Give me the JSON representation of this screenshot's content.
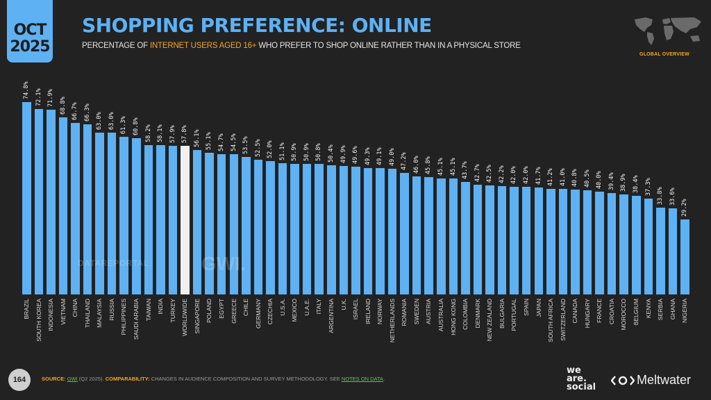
{
  "header": {
    "date_month": "OCT",
    "date_year": "2025",
    "title": "SHOPPING PREFERENCE: ONLINE",
    "subtitle_pre": "PERCENTAGE OF ",
    "subtitle_highlight": "INTERNET USERS AGED 16+",
    "subtitle_post": " WHO PREFER TO SHOP ONLINE RATHER THAN IN A PHYSICAL STORE",
    "section_label": "GLOBAL OVERVIEW"
  },
  "watermarks": {
    "left": "DATAREPORTAL",
    "right": "GWI."
  },
  "footer": {
    "page_number": "164",
    "source_label": "SOURCE:",
    "source_value": "GWI",
    "source_period": " (Q2 2025). ",
    "comparability_label": "COMPARABILITY:",
    "comparability_text": " CHANGES IN AUDIENCE COMPOSITION AND SURVEY METHODOLOGY. SEE ",
    "notes_link": "NOTES ON DATA",
    "notes_end": "."
  },
  "logos": {
    "we_are_social": [
      "we",
      "are.",
      "social"
    ],
    "meltwater": "Meltwater"
  },
  "colors": {
    "bar": "#5eb1f3",
    "highlight_bar": "#f0f0f0",
    "accent": "#f5a623",
    "background": "#222222"
  },
  "chart_data": {
    "type": "bar",
    "title": "SHOPPING PREFERENCE: ONLINE",
    "subtitle": "PERCENTAGE OF INTERNET USERS AGED 16+ WHO PREFER TO SHOP ONLINE RATHER THAN IN A PHYSICAL STORE",
    "xlabel": "",
    "ylabel": "",
    "ylim": [
      0,
      80
    ],
    "grid": false,
    "legend": null,
    "highlight": "WORLDWIDE",
    "categories": [
      "BRAZIL",
      "SOUTH KOREA",
      "INDONESIA",
      "VIETNAM",
      "CHINA",
      "THAILAND",
      "MALAYSIA",
      "RUSSIA",
      "PHILIPPINES",
      "SAUDI ARABIA",
      "TAIWAN",
      "INDIA",
      "TURKEY",
      "WORLDWIDE",
      "SINGAPORE",
      "POLAND",
      "EGYPT",
      "GREECE",
      "CHILE",
      "GERMANY",
      "CZECHIA",
      "U.S.A.",
      "MEXICO",
      "U.A.E.",
      "ITALY",
      "ARGENTINA",
      "U.K.",
      "ISRAEL",
      "IRELAND",
      "NORWAY",
      "NETHERLANDS",
      "ROMANIA",
      "SWEDEN",
      "AUSTRIA",
      "AUSTRALIA",
      "HONG KONG",
      "COLOMBIA",
      "DENMARK",
      "NEW ZEALAND",
      "BULGARIA",
      "PORTUGAL",
      "SPAIN",
      "JAPAN",
      "SOUTH AFRICA",
      "SWITZERLAND",
      "CANADA",
      "HUNGARY",
      "FRANCE",
      "CROATIA",
      "MOROCCO",
      "BELGIUM",
      "KENYA",
      "SERBIA",
      "GHANA",
      "NIGERIA"
    ],
    "values": [
      74.8,
      72.1,
      71.9,
      68.8,
      66.7,
      66.3,
      63.0,
      63.0,
      61.3,
      60.8,
      58.2,
      58.1,
      57.9,
      57.8,
      56.1,
      55.1,
      54.7,
      54.5,
      53.5,
      52.5,
      52.0,
      51.1,
      50.9,
      50.9,
      50.8,
      50.4,
      49.9,
      49.6,
      49.3,
      49.1,
      49.0,
      47.2,
      46.0,
      45.8,
      45.1,
      45.1,
      43.7,
      42.7,
      42.5,
      42.2,
      42.0,
      42.0,
      41.7,
      41.2,
      41.0,
      40.8,
      40.5,
      40.0,
      39.4,
      38.9,
      38.4,
      37.3,
      33.8,
      33.6,
      29.2
    ],
    "labels": [
      "74.8%",
      "72.1%",
      "71.9%",
      "68.8%",
      "66.7%",
      "66.3%",
      "63.0%",
      "63.0%",
      "61.3%",
      "60.8%",
      "58.2%",
      "58.1%",
      "57.9%",
      "57.8%",
      "56.1%",
      "55.1%",
      "54.7%",
      "54.5%",
      "53.5%",
      "52.5%",
      "52.0%",
      "51.1%",
      "50.9%",
      "50.9%",
      "50.8%",
      "50.4%",
      "49.9%",
      "49.6%",
      "49.3%",
      "49.1%",
      "49.0%",
      "47.2%",
      "46.0%",
      "45.8%",
      "45.1%",
      "45.1%",
      "43.7%",
      "42.7%",
      "42.5%",
      "42.2%",
      "42.0%",
      "42.0%",
      "41.7%",
      "41.2%",
      "41.0%",
      "40.8%",
      "40.5%",
      "40.0%",
      "39.4%",
      "38.9%",
      "38.4%",
      "37.3%",
      "33.8%",
      "33.6%",
      "29.2%"
    ]
  }
}
